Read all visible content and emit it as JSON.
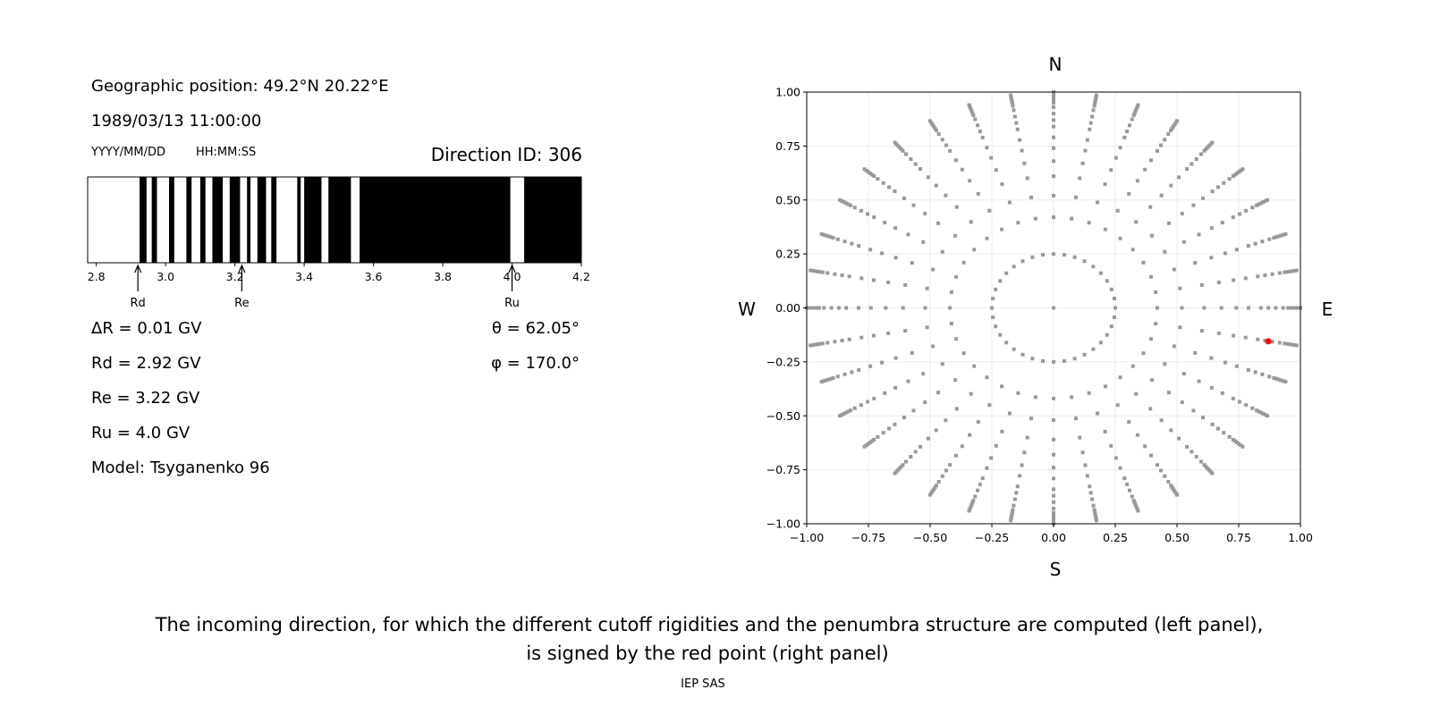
{
  "info": {
    "position": "Geographic position: 49.2°N 20.22°E",
    "datetime": "1989/03/13 11:00:00",
    "date_format": "YYYY/MM/DD",
    "time_format": "HH:MM:SS",
    "direction_id": "Direction ID: 306",
    "delta_r": "ΔR = 0.01 GV",
    "rd": "Rd = 2.92 GV",
    "re": "Re = 3.22 GV",
    "ru": "Ru = 4.0 GV",
    "model": "Model: Tsyganenko 96",
    "theta": "θ = 62.05°",
    "phi": "φ = 170.0°"
  },
  "caption": {
    "line1": "The incoming direction, for which the different cutoff rigidities and the penumbra structure are computed (left panel),",
    "line2": "is signed by the red point (right panel)",
    "credit": "IEP SAS"
  },
  "chart_data": [
    {
      "type": "bar",
      "description_kind": "penumbra structure",
      "xlim": [
        2.775,
        4.2
      ],
      "xticks": [
        "2.8",
        "3.0",
        "3.2",
        "3.4",
        "3.6",
        "3.8",
        "4.0",
        "4.2"
      ],
      "xtick_values": [
        2.8,
        3.0,
        3.2,
        3.4,
        3.6,
        3.8,
        4.0,
        4.2
      ],
      "forbidden_intervals": [
        [
          2.925,
          2.945
        ],
        [
          2.96,
          2.975
        ],
        [
          3.01,
          3.025
        ],
        [
          3.06,
          3.075
        ],
        [
          3.1,
          3.115
        ],
        [
          3.135,
          3.165
        ],
        [
          3.185,
          3.215
        ],
        [
          3.235,
          3.245
        ],
        [
          3.265,
          3.29
        ],
        [
          3.305,
          3.32
        ],
        [
          3.38,
          3.39
        ],
        [
          3.4,
          3.45
        ],
        [
          3.47,
          3.535
        ],
        [
          3.56,
          3.995
        ],
        [
          4.035,
          4.2
        ]
      ],
      "markers": [
        {
          "label": "Rd",
          "value": 2.92
        },
        {
          "label": "Re",
          "value": 3.22
        },
        {
          "label": "Ru",
          "value": 4.0
        }
      ],
      "colors": {
        "forbidden": "#000000",
        "allowed": "#ffffff"
      }
    },
    {
      "type": "scatter",
      "xlim": [
        -1,
        1
      ],
      "ylim": [
        -1,
        1
      ],
      "grid": true,
      "xticks": [
        "−1.00",
        "−0.75",
        "−0.50",
        "−0.25",
        "0.00",
        "0.25",
        "0.50",
        "0.75",
        "1.00"
      ],
      "yticks": [
        "−1.00",
        "−0.75",
        "−0.50",
        "−0.25",
        "0.00",
        "0.25",
        "0.50",
        "0.75",
        "1.00"
      ],
      "tick_values": [
        -1,
        -0.75,
        -0.5,
        -0.25,
        0,
        0.25,
        0.5,
        0.75,
        1
      ],
      "compass": {
        "north": "N",
        "south": "S",
        "west": "W",
        "east": "E"
      },
      "grid_points": {
        "center": [
          0,
          0
        ],
        "ring_radius": 0.25,
        "ring_azimuth_step_deg": 10,
        "spoke_azimuth_step_deg": 10,
        "spoke_radii": [
          0.42,
          0.52,
          0.61,
          0.68,
          0.74,
          0.79,
          0.84,
          0.87,
          0.9,
          0.93,
          0.95,
          0.96,
          0.97,
          0.98,
          0.99,
          1.0
        ]
      },
      "selected_point": [
        0.87,
        -0.155
      ],
      "colors": {
        "points": "#999999",
        "selected": "#ff0000"
      }
    }
  ]
}
